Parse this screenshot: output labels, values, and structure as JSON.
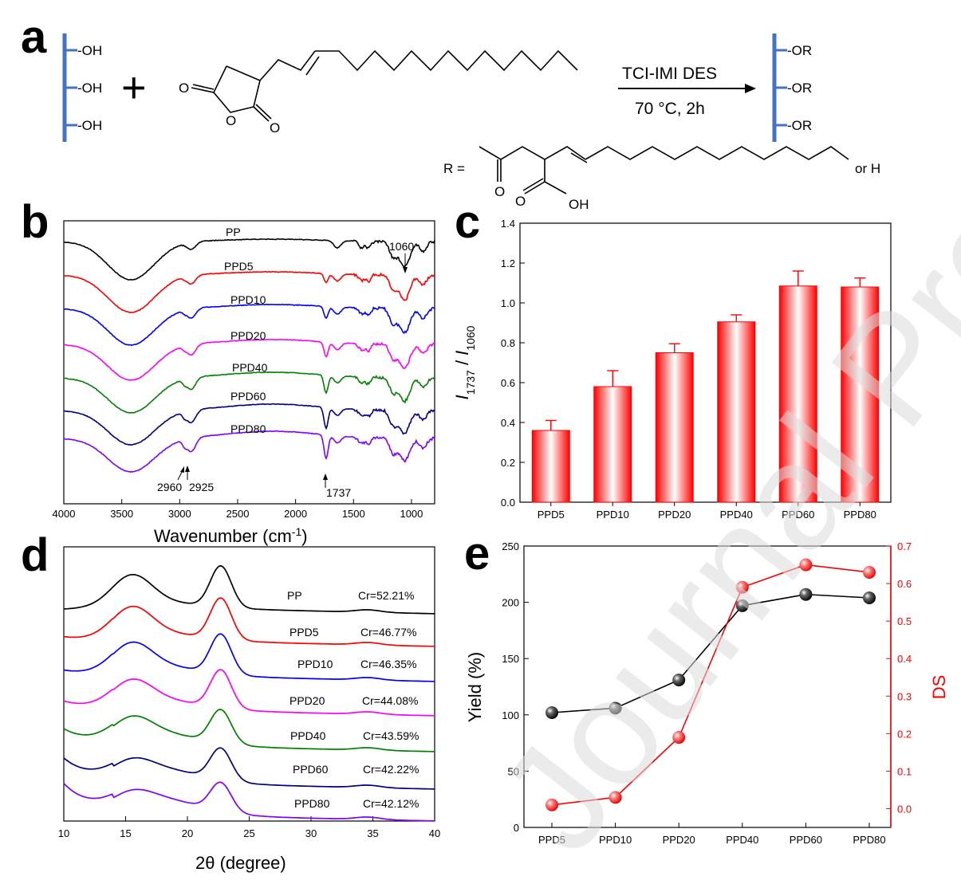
{
  "watermark": "Journal Pre-proofs",
  "panel_a": {
    "letter": "a",
    "oh_label": "-OH",
    "or_label": "-OR",
    "plus": "+",
    "o_label": "O",
    "reagent": "TCI-IMI DES",
    "conditions": "70 °C, 2h",
    "r_equals": "R =",
    "oh_acid": "OH",
    "or_h": "or H"
  },
  "chart_data": [
    {
      "panel": "b",
      "type": "line",
      "title": "",
      "xlabel": "Wavenumber (cm",
      "xlabel_sup": "-1",
      "xlabel_end": ")",
      "xlim": [
        4000,
        800
      ],
      "xticks": [
        "4000",
        "3500",
        "3000",
        "2500",
        "2000",
        "1500",
        "1000"
      ],
      "series": [
        {
          "name": "PP",
          "color": "#000000"
        },
        {
          "name": "PPD5",
          "color": "#ff0000"
        },
        {
          "name": "PPD10",
          "color": "#0000ff"
        },
        {
          "name": "PPD20",
          "color": "#ff00ff"
        },
        {
          "name": "PPD40",
          "color": "#008000"
        },
        {
          "name": "PPD60",
          "color": "#000080"
        },
        {
          "name": "PPD80",
          "color": "#8000ff"
        }
      ],
      "annotations": [
        "1060",
        "2960",
        "2925",
        "1737"
      ]
    },
    {
      "panel": "c",
      "type": "bar",
      "ylabel": "I1737 / I1060",
      "ylabel_parts": [
        "I",
        "1737",
        " / ",
        "I",
        "1060"
      ],
      "ylim": [
        0.0,
        1.4
      ],
      "yticks": [
        "0.0",
        "0.2",
        "0.4",
        "0.6",
        "0.8",
        "1.0",
        "1.2",
        "1.4"
      ],
      "categories": [
        "PPD5",
        "PPD10",
        "PPD20",
        "PPD40",
        "PPD60",
        "PPD80"
      ],
      "values": [
        0.36,
        0.58,
        0.75,
        0.905,
        1.085,
        1.08
      ],
      "errors": [
        0.05,
        0.08,
        0.045,
        0.035,
        0.075,
        0.045
      ],
      "color": "#ff0000"
    },
    {
      "panel": "d",
      "type": "line",
      "xlabel": "2θ (degree)",
      "xlim": [
        10,
        40
      ],
      "xticks": [
        "10",
        "15",
        "20",
        "25",
        "30",
        "35",
        "40"
      ],
      "series": [
        {
          "name": "PP",
          "cr": "Cr=52.21%",
          "color": "#000000"
        },
        {
          "name": "PPD5",
          "cr": "Cr=46.77%",
          "color": "#ff0000"
        },
        {
          "name": "PPD10",
          "cr": "Cr=46.35%",
          "color": "#0000ff"
        },
        {
          "name": "PPD20",
          "cr": "Cr=44.08%",
          "color": "#ff00ff"
        },
        {
          "name": "PPD40",
          "cr": "Cr=43.59%",
          "color": "#008000"
        },
        {
          "name": "PPD60",
          "cr": "Cr=42.22%",
          "color": "#000080"
        },
        {
          "name": "PPD80",
          "cr": "Cr=42.12%",
          "color": "#8000ff"
        }
      ]
    },
    {
      "panel": "e",
      "type": "line",
      "categories": [
        "PPD5",
        "PPD10",
        "PPD20",
        "PPD40",
        "PPD60",
        "PPD80"
      ],
      "series": [
        {
          "name": "Yield (%)",
          "axis": "left",
          "color": "#000000",
          "values": [
            102,
            106,
            131,
            197,
            207,
            204
          ]
        },
        {
          "name": "DS",
          "axis": "right",
          "color": "#ff0000",
          "values": [
            0.01,
            0.03,
            0.19,
            0.59,
            0.65,
            0.63
          ]
        }
      ],
      "ylabel": "Yield (%)",
      "ylim": [
        0,
        250
      ],
      "yticks": [
        "0",
        "50",
        "100",
        "150",
        "200",
        "250"
      ],
      "y2label": "DS",
      "y2lim": [
        -0.05,
        0.7
      ],
      "y2ticks": [
        "0.0",
        "0.1",
        "0.2",
        "0.3",
        "0.4",
        "0.5",
        "0.6",
        "0.7"
      ]
    }
  ]
}
